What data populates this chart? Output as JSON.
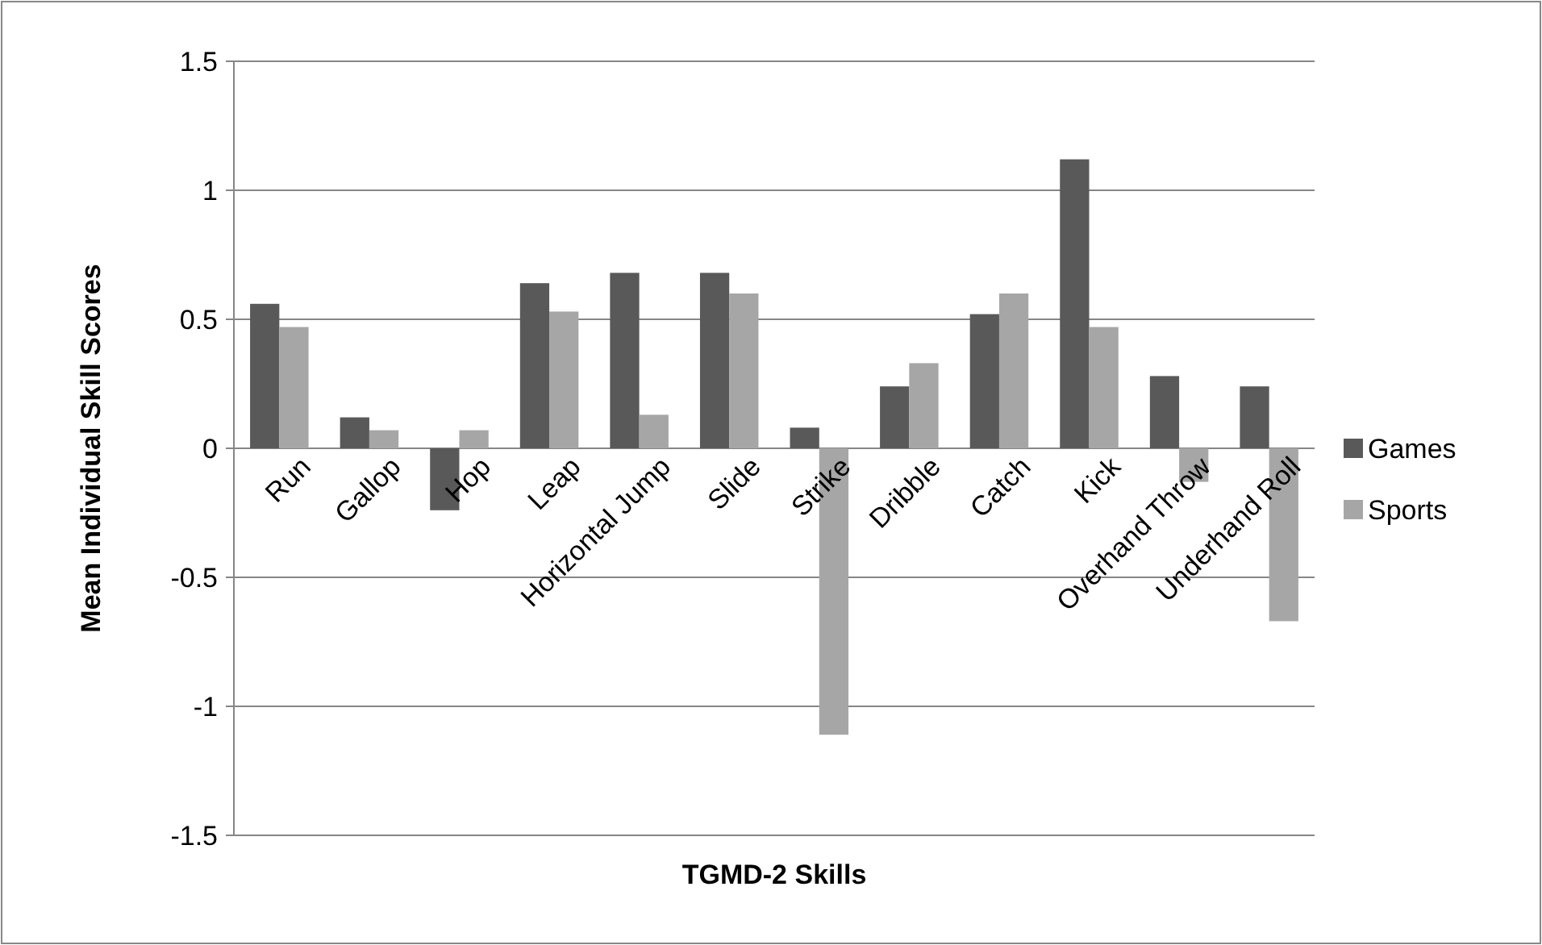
{
  "chart_data": {
    "type": "bar",
    "xlabel": "TGMD-2 Skills",
    "ylabel": "Mean Individual Skill Scores",
    "categories": [
      "Run",
      "Gallop",
      "Hop",
      "Leap",
      "Horizontal Jump",
      "Slide",
      "Strike",
      "Dribble",
      "Catch",
      "Kick",
      "Overhand Throw",
      "Underhand Roll"
    ],
    "series": [
      {
        "name": "Games",
        "color": "#595959",
        "values": [
          0.56,
          0.12,
          -0.24,
          0.64,
          0.68,
          0.68,
          0.08,
          0.24,
          0.52,
          1.12,
          0.28,
          0.24
        ]
      },
      {
        "name": "Sports",
        "color": "#a6a6a6",
        "values": [
          0.47,
          0.07,
          0.07,
          0.53,
          0.13,
          0.6,
          -1.11,
          0.33,
          0.6,
          0.47,
          -0.13,
          -0.67
        ]
      }
    ],
    "ylim": [
      -1.5,
      1.5
    ],
    "yticks": [
      -1.5,
      -1,
      -0.5,
      0,
      0.5,
      1,
      1.5
    ],
    "grid": "y",
    "legend": "right"
  }
}
